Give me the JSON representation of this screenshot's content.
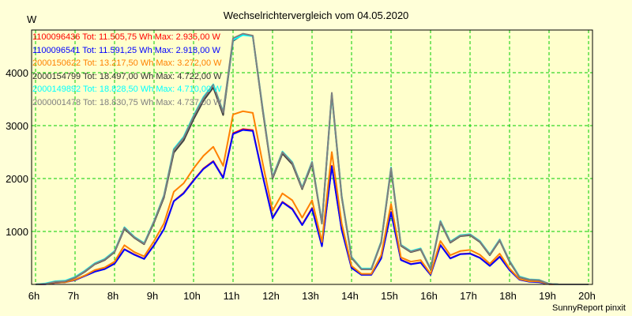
{
  "chart_data": {
    "type": "line",
    "title": "Wechselrichtervergleich vom 04.05.2020",
    "ylabel": "W",
    "xlabel": "",
    "credit": "SunnyReport pinxit",
    "xlim": [
      6,
      20
    ],
    "ylim": [
      0,
      4850
    ],
    "grid": true,
    "legend_placement": "top-left",
    "x_ticks": [
      6,
      7,
      8,
      9,
      10,
      11,
      12,
      13,
      14,
      15,
      16,
      17,
      18,
      19,
      20
    ],
    "x_tick_labels": [
      "6h",
      "7h",
      "8h",
      "9h",
      "10h",
      "11h",
      "12h",
      "13h",
      "14h",
      "15h",
      "16h",
      "17h",
      "18h",
      "19h",
      "20h"
    ],
    "y_ticks": [
      1000,
      2000,
      3000,
      4000
    ],
    "y_tick_labels": [
      "1000",
      "2000",
      "3000",
      "4000"
    ],
    "x_start": 6,
    "x_step_hours": 0.25,
    "series": [
      {
        "name": "1100096436",
        "total": "Tot: 11.505,75 Wh",
        "max": "Max: 2.935,00 W",
        "color": "#FF0000",
        "values": [
          0,
          6,
          32,
          42,
          85,
          165,
          245,
          295,
          395,
          665,
          565,
          485,
          745,
          1045,
          1575,
          1730,
          1970,
          2190,
          2330,
          2020,
          2855,
          2935,
          2915,
          2060,
          1260,
          1560,
          1430,
          1130,
          1440,
          730,
          2240,
          1040,
          315,
          185,
          185,
          495,
          1370,
          465,
          385,
          415,
          185,
          745,
          495,
          575,
          585,
          505,
          355,
          525,
          275,
          95,
          55,
          45,
          6,
          0,
          0,
          0,
          0
        ]
      },
      {
        "name": "1100096541",
        "total": "Tot: 11.591,25 Wh",
        "max": "Max: 2.918,00 W",
        "color": "#0000FF",
        "values": [
          0,
          5,
          30,
          40,
          80,
          160,
          240,
          290,
          390,
          660,
          560,
          480,
          740,
          1040,
          1570,
          1720,
          1960,
          2180,
          2320,
          2010,
          2840,
          2918,
          2900,
          2050,
          1250,
          1550,
          1420,
          1120,
          1430,
          720,
          2230,
          1030,
          310,
          180,
          180,
          490,
          1360,
          460,
          380,
          410,
          180,
          740,
          490,
          570,
          580,
          500,
          350,
          520,
          270,
          90,
          50,
          40,
          5,
          0,
          0,
          0,
          0
        ]
      },
      {
        "name": "2000150622",
        "total": "Tot: 13.217,50 Wh",
        "max": "Max: 3.272,00 W",
        "color": "#FF8000",
        "values": [
          0,
          7,
          35,
          40,
          90,
          170,
          270,
          320,
          430,
          740,
          610,
          530,
          820,
          1150,
          1750,
          1910,
          2190,
          2430,
          2600,
          2240,
          3210,
          3272,
          3240,
          2290,
          1390,
          1720,
          1590,
          1260,
          1590,
          800,
          2500,
          1150,
          350,
          200,
          200,
          550,
          1520,
          510,
          430,
          460,
          200,
          820,
          550,
          630,
          650,
          560,
          390,
          580,
          300,
          100,
          60,
          55,
          5,
          0,
          0,
          0,
          0
        ]
      },
      {
        "name": "2000154799",
        "total": "Tot: 18.497,00 Wh",
        "max": "Max: 4.722,00 W",
        "color": "#404040",
        "values": [
          0,
          10,
          45,
          55,
          125,
          240,
          380,
          460,
          610,
          1050,
          880,
          760,
          1170,
          1640,
          2490,
          2720,
          3120,
          3470,
          3720,
          3200,
          4600,
          4722,
          4690,
          3290,
          2000,
          2470,
          2270,
          1800,
          2280,
          1150,
          3580,
          1650,
          500,
          285,
          285,
          790,
          2170,
          730,
          610,
          660,
          285,
          1170,
          790,
          910,
          930,
          800,
          550,
          830,
          430,
          135,
          88,
          78,
          10,
          0,
          0,
          0,
          0
        ]
      },
      {
        "name": "2000149892",
        "total": "Tot: 18.828,50 Wh",
        "max": "Max: 4.710,00 W",
        "color": "#00FFFF",
        "values": [
          0,
          20,
          60,
          70,
          140,
          260,
          400,
          480,
          630,
          1080,
          900,
          780,
          1200,
          1680,
          2560,
          2790,
          3190,
          3540,
          3780,
          3260,
          4620,
          4710,
          4690,
          3330,
          2030,
          2510,
          2310,
          1830,
          2320,
          1170,
          3600,
          1680,
          520,
          300,
          300,
          810,
          2210,
          750,
          630,
          680,
          300,
          1200,
          810,
          930,
          950,
          820,
          570,
          850,
          450,
          150,
          95,
          85,
          10,
          0,
          0,
          0,
          0
        ]
      },
      {
        "name": "2000001478",
        "total": "Tot: 18.830,75 Wh",
        "max": "Max: 4.737,00 W",
        "color": "#808080",
        "values": [
          0,
          10,
          50,
          60,
          130,
          250,
          390,
          470,
          620,
          1070,
          890,
          770,
          1190,
          1670,
          2540,
          2770,
          3170,
          3520,
          3770,
          3250,
          4650,
          4737,
          4700,
          3320,
          2020,
          2500,
          2300,
          1820,
          2310,
          1160,
          3620,
          1670,
          510,
          290,
          290,
          800,
          2200,
          740,
          620,
          670,
          290,
          1190,
          800,
          920,
          940,
          810,
          560,
          840,
          440,
          140,
          90,
          80,
          10,
          0,
          0,
          0,
          0
        ]
      }
    ]
  }
}
